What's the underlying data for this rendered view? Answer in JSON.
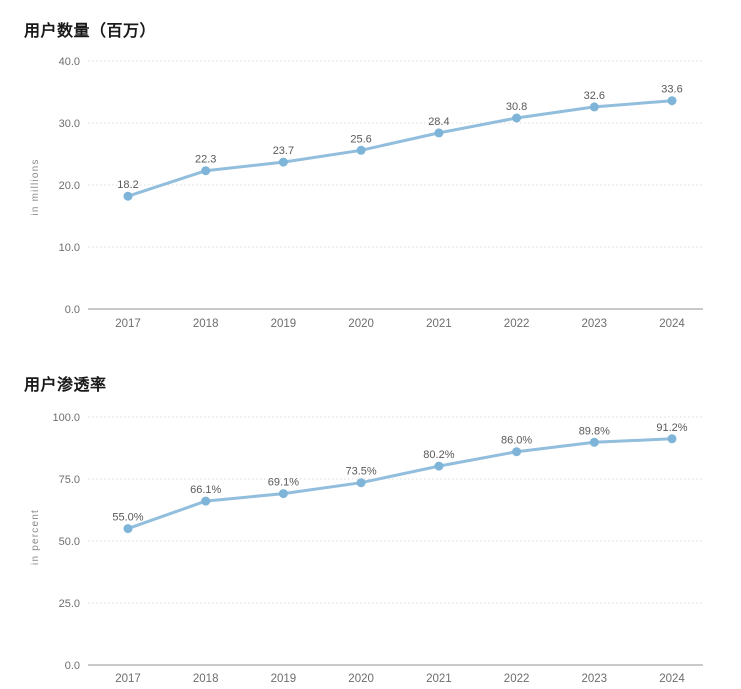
{
  "colors": {
    "line": "#92bedd",
    "marker": "#7db4d8",
    "data_label": "#595959",
    "tick_label": "#6e6e6e",
    "axis_label": "#8a8a8a",
    "grid": "#dedede",
    "baseline": "#c9c9c9",
    "title": "#1a1a1a",
    "background": "#ffffff"
  },
  "chart_data": [
    {
      "type": "line",
      "title": "用户数量（百万）",
      "xlabel": "",
      "ylabel": "in millions",
      "categories": [
        "2017",
        "2018",
        "2019",
        "2020",
        "2021",
        "2022",
        "2023",
        "2024"
      ],
      "values": [
        18.2,
        22.3,
        23.7,
        25.6,
        28.4,
        30.8,
        32.6,
        33.6
      ],
      "point_labels": [
        "18.2",
        "22.3",
        "23.7",
        "25.6",
        "28.4",
        "30.8",
        "32.6",
        "33.6"
      ],
      "ylim": [
        0,
        40
      ],
      "yticks": [
        0,
        10,
        20,
        30,
        40
      ],
      "ytick_labels": [
        "0.0",
        "10.0",
        "20.0",
        "30.0",
        "40.0"
      ],
      "grid": true,
      "legend": false
    },
    {
      "type": "line",
      "title": "用户渗透率",
      "xlabel": "",
      "ylabel": "in percent",
      "categories": [
        "2017",
        "2018",
        "2019",
        "2020",
        "2021",
        "2022",
        "2023",
        "2024"
      ],
      "values": [
        55.0,
        66.1,
        69.1,
        73.5,
        80.2,
        86.0,
        89.8,
        91.2
      ],
      "point_labels": [
        "55.0%",
        "66.1%",
        "69.1%",
        "73.5%",
        "80.2%",
        "86.0%",
        "89.8%",
        "91.2%"
      ],
      "ylim": [
        0,
        100
      ],
      "yticks": [
        0,
        25,
        50,
        75,
        100
      ],
      "ytick_labels": [
        "0.0",
        "25.0",
        "50.0",
        "75.0",
        "100.0"
      ],
      "grid": true,
      "legend": false
    }
  ]
}
